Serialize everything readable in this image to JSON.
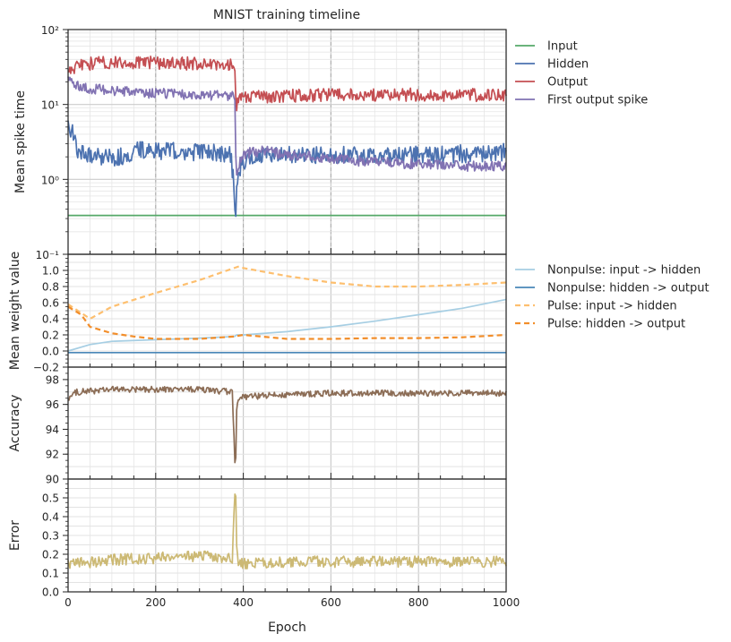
{
  "title": "MNIST training timeline",
  "colors": {
    "input": "#55a868",
    "hidden": "#4c72b0",
    "output": "#c44e52",
    "first_spike": "#8172b2",
    "np_in_hid": "#a6cee3",
    "np_hid_out": "#4a87b8",
    "p_in_hid": "#fdbf6f",
    "p_hid_out": "#f28e2b",
    "accuracy": "#8c6d56",
    "error": "#ccb974",
    "grid": "#d9d9d9",
    "axis": "#262626"
  },
  "chart_data": [
    {
      "type": "line",
      "ylabel": "Mean spike time",
      "yscale": "log",
      "ylim": [
        0.1,
        100
      ],
      "xlim": [
        0,
        1000
      ],
      "yticks": [
        {
          "v": 0.1,
          "label": "10⁻¹"
        },
        {
          "v": 1,
          "label": "10⁰"
        },
        {
          "v": 10,
          "label": "10¹"
        },
        {
          "v": 100,
          "label": "10²"
        }
      ],
      "legend_position": "right",
      "series": [
        {
          "name": "Input",
          "color_key": "input",
          "style": "solid",
          "noise": 0,
          "x": [
            0,
            1000
          ],
          "y": [
            0.33,
            0.33
          ]
        },
        {
          "name": "Hidden",
          "color_key": "hidden",
          "style": "solid",
          "noise": 0.35,
          "x": [
            0,
            10,
            20,
            50,
            100,
            140,
            150,
            200,
            300,
            370,
            382,
            385,
            390,
            400,
            450,
            500,
            600,
            700,
            800,
            900,
            1000
          ],
          "y": [
            5,
            4.5,
            2.5,
            2.1,
            2.0,
            2.0,
            2.5,
            2.4,
            2.3,
            2.2,
            0.12,
            0.8,
            1.2,
            1.8,
            2.1,
            2.1,
            2.2,
            2.0,
            2.1,
            2.2,
            2.3
          ]
        },
        {
          "name": "Output",
          "color_key": "output",
          "style": "solid",
          "noise": 0.25,
          "x": [
            0,
            20,
            50,
            100,
            200,
            300,
            380,
            383,
            390,
            400,
            500,
            600,
            700,
            800,
            900,
            1000
          ],
          "y": [
            28,
            32,
            35,
            36,
            36,
            35,
            34,
            9,
            11,
            12.5,
            13,
            13.5,
            13.5,
            13.5,
            13.5,
            13
          ]
        },
        {
          "name": "First output spike",
          "color_key": "first_spike",
          "style": "solid",
          "noise": 0.2,
          "x": [
            0,
            10,
            30,
            100,
            200,
            300,
            380,
            383,
            390,
            400,
            450,
            500,
            600,
            700,
            800,
            900,
            1000
          ],
          "y": [
            22,
            20,
            17,
            15,
            14,
            13.5,
            13,
            1.0,
            1.5,
            2.2,
            2.4,
            2.1,
            1.9,
            1.7,
            1.6,
            1.5,
            1.5
          ]
        }
      ]
    },
    {
      "type": "line",
      "ylabel": "Mean weight value",
      "ylim": [
        -0.2,
        1.2
      ],
      "xlim": [
        0,
        1000
      ],
      "yticks": [
        -0.2,
        0.0,
        0.2,
        0.4,
        0.6,
        0.8,
        1.0
      ],
      "legend_position": "right",
      "series": [
        {
          "name": "Nonpulse: input -> hidden",
          "color_key": "np_in_hid",
          "style": "solid",
          "noise": 0,
          "x": [
            0,
            50,
            100,
            200,
            300,
            380,
            385,
            400,
            500,
            600,
            700,
            800,
            900,
            1000
          ],
          "y": [
            0.0,
            0.08,
            0.12,
            0.14,
            0.16,
            0.18,
            0.2,
            0.2,
            0.24,
            0.3,
            0.37,
            0.45,
            0.53,
            0.64
          ]
        },
        {
          "name": "Nonpulse: hidden -> output",
          "color_key": "np_hid_out",
          "style": "solid",
          "noise": 0,
          "x": [
            0,
            1000
          ],
          "y": [
            -0.02,
            -0.02
          ]
        },
        {
          "name": "Pulse: input -> hidden",
          "color_key": "p_in_hid",
          "style": "dashed",
          "noise": 0,
          "x": [
            0,
            50,
            100,
            200,
            300,
            390,
            400,
            500,
            600,
            700,
            800,
            900,
            1000
          ],
          "y": [
            0.58,
            0.4,
            0.55,
            0.72,
            0.88,
            1.05,
            1.03,
            0.93,
            0.85,
            0.8,
            0.8,
            0.82,
            0.85
          ]
        },
        {
          "name": "Pulse: hidden -> output",
          "color_key": "p_hid_out",
          "style": "dashed",
          "noise": 0,
          "x": [
            0,
            30,
            50,
            100,
            150,
            200,
            300,
            380,
            400,
            500,
            600,
            700,
            800,
            900,
            1000
          ],
          "y": [
            0.55,
            0.45,
            0.3,
            0.22,
            0.18,
            0.15,
            0.15,
            0.18,
            0.2,
            0.15,
            0.15,
            0.16,
            0.16,
            0.17,
            0.2
          ]
        }
      ]
    },
    {
      "type": "line",
      "ylabel": "Accuracy",
      "ylim": [
        90,
        99
      ],
      "xlim": [
        0,
        1000
      ],
      "yticks": [
        90,
        92,
        94,
        96,
        98
      ],
      "series": [
        {
          "name": "",
          "color_key": "accuracy",
          "style": "solid",
          "noise": 0.25,
          "x": [
            0,
            20,
            100,
            200,
            300,
            375,
            382,
            385,
            390,
            400,
            500,
            600,
            700,
            800,
            900,
            1000
          ],
          "y": [
            96.5,
            97,
            97.2,
            97.2,
            97.2,
            97.0,
            90.0,
            96.0,
            96.3,
            96.6,
            96.8,
            96.9,
            96.9,
            96.9,
            96.9,
            96.9
          ]
        }
      ]
    },
    {
      "type": "line",
      "ylabel": "Error",
      "ylim": [
        0.0,
        0.6
      ],
      "xlim": [
        0,
        1000
      ],
      "xlabel": "Epoch",
      "xticks": [
        0,
        200,
        400,
        600,
        800,
        1000
      ],
      "yticks": [
        0.0,
        0.1,
        0.2,
        0.3,
        0.4,
        0.5
      ],
      "series": [
        {
          "name": "",
          "color_key": "error",
          "style": "solid",
          "noise": 0.03,
          "x": [
            0,
            20,
            100,
            200,
            300,
            375,
            382,
            385,
            390,
            400,
            500,
            600,
            700,
            800,
            900,
            1000
          ],
          "y": [
            0.14,
            0.15,
            0.17,
            0.18,
            0.19,
            0.18,
            0.6,
            0.2,
            0.16,
            0.15,
            0.16,
            0.16,
            0.16,
            0.16,
            0.16,
            0.16
          ]
        }
      ]
    }
  ]
}
